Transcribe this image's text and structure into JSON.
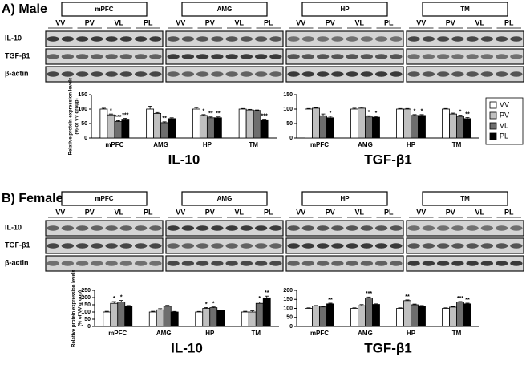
{
  "panels": [
    {
      "label": "A) Male",
      "regions": [
        "mPFC",
        "AMG",
        "HP",
        "TM"
      ],
      "lanes": [
        "VV",
        "PV",
        "VL",
        "PL"
      ],
      "proteins": [
        "IL-10",
        "TGF-β1",
        "β-actin"
      ]
    },
    {
      "label": "B) Female",
      "regions": [
        "mPFC",
        "AMG",
        "HP",
        "TM"
      ],
      "lanes": [
        "VV",
        "PV",
        "VL",
        "PL"
      ],
      "proteins": [
        "IL-10",
        "TGF-β1",
        "β-actin"
      ]
    }
  ],
  "chart_data": [
    {
      "type": "bar",
      "title": "IL-10",
      "ylabel": [
        "Relative protein expression levels",
        "(% of VV group)"
      ],
      "categories": [
        "mPFC",
        "AMG",
        "HP",
        "TM"
      ],
      "ylim": [
        0,
        150
      ],
      "yticks": [
        0,
        50,
        100,
        150
      ],
      "series": [
        {
          "name": "VV",
          "color": "#ffffff",
          "values": [
            100,
            100,
            100,
            100
          ],
          "errors": [
            3,
            10,
            5,
            2
          ],
          "significance": [
            null,
            null,
            null,
            null
          ]
        },
        {
          "name": "PV",
          "color": "#c0c0c0",
          "values": [
            80,
            85,
            78,
            97
          ],
          "errors": [
            3,
            3,
            3,
            2
          ],
          "significance": [
            "*",
            null,
            "*",
            null
          ]
        },
        {
          "name": "VL",
          "color": "#6e6e6e",
          "values": [
            57,
            53,
            70,
            95
          ],
          "errors": [
            3,
            3,
            3,
            2
          ],
          "significance": [
            "***",
            "**",
            "**",
            null
          ]
        },
        {
          "name": "PL",
          "color": "#000000",
          "values": [
            65,
            67,
            70,
            63
          ],
          "errors": [
            3,
            3,
            3,
            2
          ],
          "significance": [
            "***",
            null,
            "**",
            "***"
          ]
        }
      ]
    },
    {
      "type": "bar",
      "title": "TGF-β1",
      "legend": "right",
      "categories": [
        "mPFC",
        "AMG",
        "HP",
        "TM"
      ],
      "ylim": [
        0,
        150
      ],
      "yticks": [
        0,
        50,
        100,
        150
      ],
      "series": [
        {
          "name": "VV",
          "color": "#ffffff",
          "values": [
            100,
            100,
            100,
            100
          ],
          "errors": [
            2,
            3,
            2,
            2
          ],
          "significance": [
            null,
            null,
            null,
            null
          ]
        },
        {
          "name": "PV",
          "color": "#c0c0c0",
          "values": [
            103,
            103,
            100,
            83
          ],
          "errors": [
            2,
            3,
            2,
            3
          ],
          "significance": [
            null,
            null,
            null,
            null
          ]
        },
        {
          "name": "VL",
          "color": "#6e6e6e",
          "values": [
            77,
            73,
            78,
            75
          ],
          "errors": [
            6,
            4,
            3,
            4
          ],
          "significance": [
            null,
            "*",
            "*",
            "*"
          ]
        },
        {
          "name": "PL",
          "color": "#000000",
          "values": [
            70,
            72,
            78,
            67
          ],
          "errors": [
            5,
            3,
            3,
            4
          ],
          "significance": [
            "*",
            "*",
            "*",
            "**"
          ]
        }
      ]
    },
    {
      "type": "bar",
      "title": "IL-10",
      "ylabel": [
        "Relative protein expression levels",
        "(% of VV group)"
      ],
      "categories": [
        "mPFC",
        "AMG",
        "HP",
        "TM"
      ],
      "ylim": [
        0,
        250
      ],
      "yticks": [
        0,
        50,
        100,
        150,
        200,
        250
      ],
      "series": [
        {
          "name": "VV",
          "color": "#ffffff",
          "values": [
            100,
            100,
            100,
            100
          ],
          "errors": [
            5,
            5,
            4,
            5
          ],
          "significance": [
            null,
            null,
            null,
            null
          ]
        },
        {
          "name": "PV",
          "color": "#c0c0c0",
          "values": [
            160,
            115,
            125,
            100
          ],
          "errors": [
            12,
            8,
            6,
            8
          ],
          "significance": [
            "*",
            null,
            "*",
            null
          ]
        },
        {
          "name": "VL",
          "color": "#6e6e6e",
          "values": [
            170,
            140,
            130,
            160
          ],
          "errors": [
            10,
            6,
            5,
            10
          ],
          "significance": [
            "*",
            null,
            "*",
            "*"
          ]
        },
        {
          "name": "PL",
          "color": "#000000",
          "values": [
            140,
            100,
            110,
            198
          ],
          "errors": [
            5,
            4,
            4,
            12
          ],
          "significance": [
            null,
            null,
            null,
            "**"
          ]
        }
      ]
    },
    {
      "type": "bar",
      "title": "TGF-β1",
      "categories": [
        "mPFC",
        "AMG",
        "HP",
        "TM"
      ],
      "ylim": [
        0,
        200
      ],
      "yticks": [
        0,
        50,
        100,
        150,
        200
      ],
      "series": [
        {
          "name": "VV",
          "color": "#ffffff",
          "values": [
            100,
            100,
            100,
            100
          ],
          "errors": [
            3,
            3,
            3,
            3
          ],
          "significance": [
            null,
            null,
            null,
            null
          ]
        },
        {
          "name": "PV",
          "color": "#c0c0c0",
          "values": [
            113,
            115,
            143,
            107
          ],
          "errors": [
            3,
            6,
            4,
            3
          ],
          "significance": [
            null,
            null,
            "**",
            null
          ]
        },
        {
          "name": "VL",
          "color": "#6e6e6e",
          "values": [
            108,
            158,
            120,
            135
          ],
          "errors": [
            3,
            5,
            4,
            3
          ],
          "significance": [
            null,
            "***",
            null,
            "***"
          ]
        },
        {
          "name": "PL",
          "color": "#000000",
          "values": [
            125,
            122,
            113,
            125
          ],
          "errors": [
            4,
            3,
            3,
            4
          ],
          "significance": [
            "**",
            null,
            null,
            "**"
          ]
        }
      ]
    }
  ]
}
